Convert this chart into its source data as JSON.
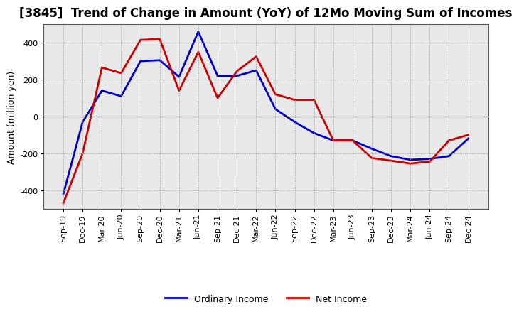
{
  "title": "[3845]  Trend of Change in Amount (YoY) of 12Mo Moving Sum of Incomes",
  "ylabel": "Amount (million yen)",
  "x_labels": [
    "Sep-19",
    "Dec-19",
    "Mar-20",
    "Jun-20",
    "Sep-20",
    "Dec-20",
    "Mar-21",
    "Jun-21",
    "Sep-21",
    "Dec-21",
    "Mar-22",
    "Jun-22",
    "Sep-22",
    "Dec-22",
    "Mar-23",
    "Jun-23",
    "Sep-23",
    "Dec-23",
    "Mar-24",
    "Jun-24",
    "Sep-24",
    "Dec-24"
  ],
  "ordinary_income": [
    -420,
    -30,
    140,
    110,
    300,
    305,
    215,
    460,
    220,
    220,
    250,
    40,
    -30,
    -90,
    -130,
    -130,
    -175,
    -215,
    -235,
    -230,
    -215,
    -120
  ],
  "net_income": [
    -470,
    -200,
    265,
    235,
    415,
    420,
    140,
    350,
    100,
    245,
    325,
    120,
    90,
    90,
    -130,
    -130,
    -225,
    -240,
    -255,
    -245,
    -130,
    -100
  ],
  "ordinary_income_color": "#0000cc",
  "net_income_color": "#cc0000",
  "ylim": [
    -500,
    500
  ],
  "yticks": [
    -400,
    -200,
    0,
    200,
    400
  ],
  "bg_color": "#ffffff",
  "plot_bg_color": "#e8e8e8",
  "grid_color": "#999999",
  "line_width": 2.0,
  "legend_ordinary": "Ordinary Income",
  "legend_net": "Net Income",
  "title_fontsize": 12,
  "axis_fontsize": 9,
  "tick_fontsize": 8
}
